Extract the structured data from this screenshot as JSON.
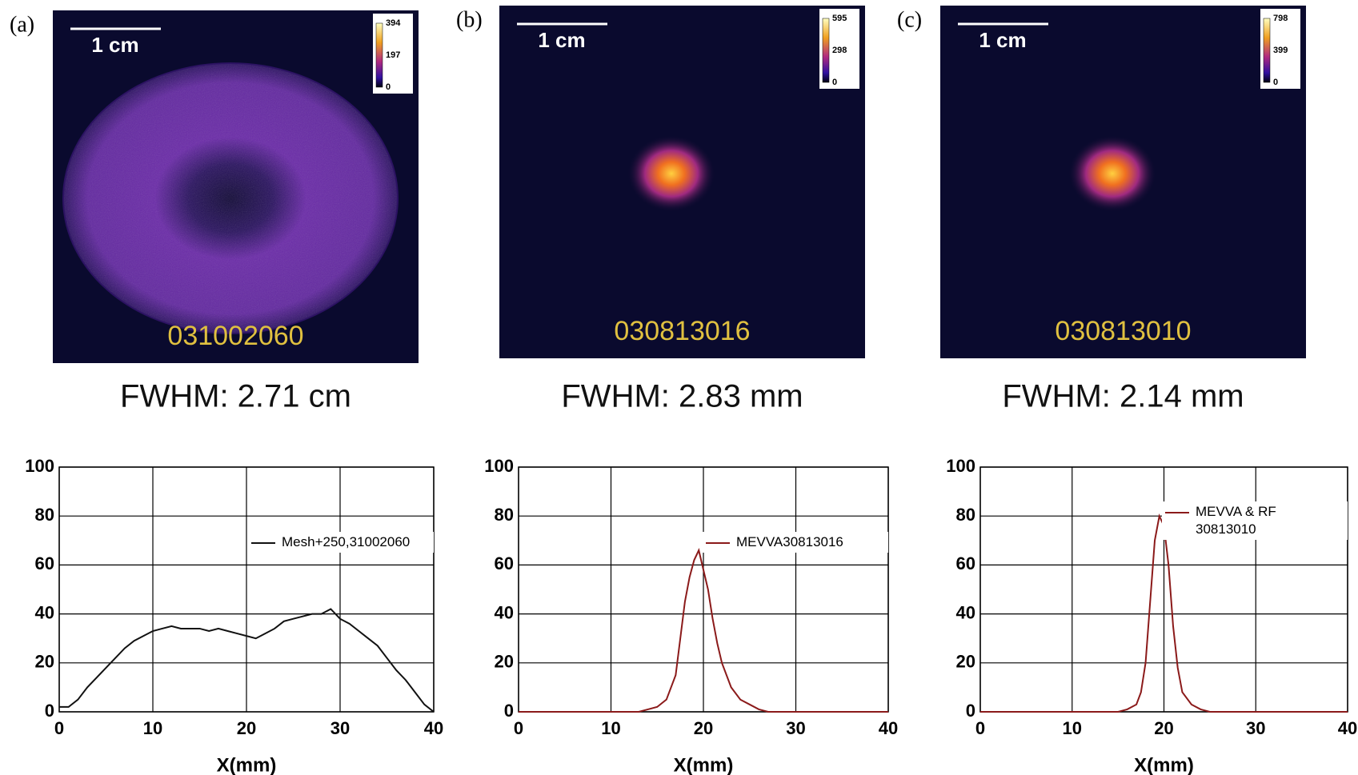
{
  "panels": [
    {
      "label": "(a)",
      "scale_bar": "1 cm",
      "colorbar_ticks": [
        394,
        197,
        0
      ],
      "image_id": "031002060",
      "fwhm": "FWHM: 2.71 cm"
    },
    {
      "label": "(b)",
      "scale_bar": "1 cm",
      "colorbar_ticks": [
        595,
        298,
        0
      ],
      "image_id": "030813016",
      "fwhm": "FWHM: 2.83 mm"
    },
    {
      "label": "(c)",
      "scale_bar": "1 cm",
      "colorbar_ticks": [
        798,
        399,
        0
      ],
      "image_id": "030813010",
      "fwhm": "FWHM: 2.14 mm"
    }
  ],
  "chart_data": [
    {
      "type": "line",
      "xlabel": "X(mm)",
      "x": [
        0,
        1,
        2,
        3,
        4,
        5,
        6,
        7,
        8,
        9,
        10,
        11,
        12,
        13,
        14,
        15,
        16,
        17,
        18,
        19,
        20,
        21,
        22,
        23,
        24,
        25,
        26,
        27,
        28,
        29,
        30,
        31,
        32,
        33,
        34,
        35,
        36,
        37,
        38,
        39,
        40
      ],
      "series": [
        {
          "name": "Mesh+250,31002060",
          "color": "#111111",
          "values": [
            2,
            2,
            5,
            10,
            14,
            18,
            22,
            26,
            29,
            31,
            33,
            34,
            35,
            34,
            34,
            34,
            33,
            34,
            33,
            32,
            31,
            30,
            32,
            34,
            37,
            38,
            39,
            40,
            40,
            42,
            38,
            36,
            33,
            30,
            27,
            22,
            17,
            13,
            8,
            3,
            0
          ]
        }
      ],
      "xlim": [
        0,
        40
      ],
      "ylim": [
        0,
        100
      ],
      "xticks": [
        0,
        10,
        20,
        30,
        40
      ],
      "yticks": [
        0,
        20,
        40,
        60,
        80,
        100
      ],
      "grid": true,
      "legend": "upper right"
    },
    {
      "type": "line",
      "xlabel": "X(mm)",
      "x": [
        0,
        5,
        10,
        13,
        14,
        15,
        16,
        17,
        17.5,
        18,
        18.5,
        19,
        19.5,
        20,
        20.5,
        21,
        21.5,
        22,
        23,
        24,
        25,
        26,
        27,
        30,
        35,
        40
      ],
      "series": [
        {
          "name": "MEVVA30813016",
          "color": "#8b1a1a",
          "values": [
            0,
            0,
            0,
            0,
            1,
            2,
            5,
            15,
            30,
            45,
            55,
            62,
            66,
            58,
            50,
            38,
            28,
            20,
            10,
            5,
            3,
            1,
            0,
            0,
            0,
            0
          ]
        }
      ],
      "xlim": [
        0,
        40
      ],
      "ylim": [
        0,
        100
      ],
      "xticks": [
        0,
        10,
        20,
        30,
        40
      ],
      "yticks": [
        0,
        20,
        40,
        60,
        80,
        100
      ],
      "grid": true,
      "legend": "upper right"
    },
    {
      "type": "line",
      "xlabel": "X(mm)",
      "x": [
        0,
        5,
        10,
        15,
        16,
        17,
        17.5,
        18,
        18.5,
        19,
        19.5,
        20,
        20.5,
        21,
        21.5,
        22,
        23,
        24,
        25,
        30,
        35,
        40
      ],
      "series": [
        {
          "name": "MEVVA & RF\n30813010",
          "color": "#8b1a1a",
          "values": [
            0,
            0,
            0,
            0,
            1,
            3,
            8,
            20,
            45,
            70,
            80,
            76,
            60,
            35,
            18,
            8,
            3,
            1,
            0,
            0,
            0,
            0
          ]
        }
      ],
      "xlim": [
        0,
        40
      ],
      "ylim": [
        0,
        100
      ],
      "xticks": [
        0,
        10,
        20,
        30,
        40
      ],
      "yticks": [
        0,
        20,
        40,
        60,
        80,
        100
      ],
      "grid": true,
      "legend": "upper right"
    }
  ]
}
